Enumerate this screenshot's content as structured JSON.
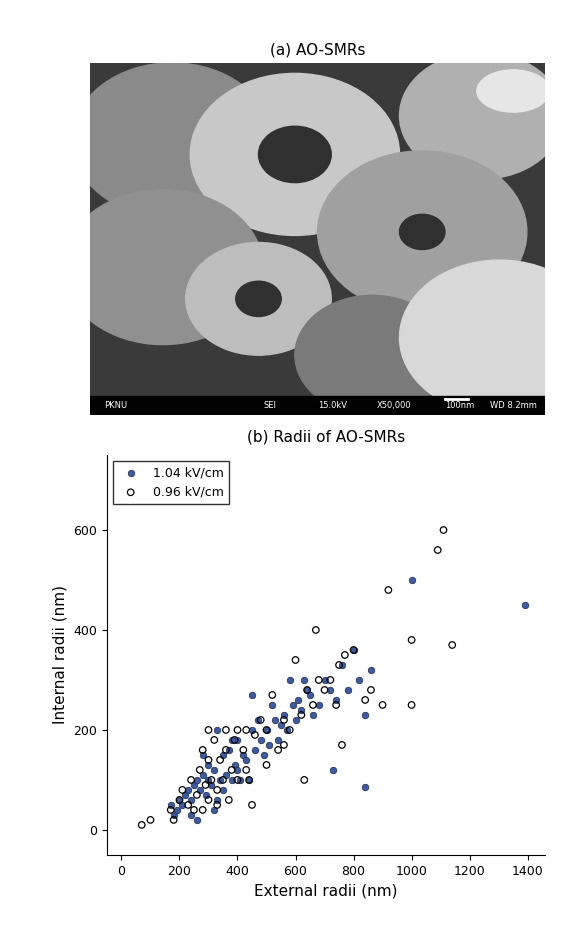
{
  "chart_data": [
    {
      "type": "image",
      "title": "(a) AO-SMRs",
      "info_bar": [
        "PKNU",
        "SEI",
        "15.0kV",
        "X50,000",
        "100nm",
        "WD 8.2mm"
      ]
    },
    {
      "type": "scatter",
      "title": "(b) Radii of AO-SMRs",
      "x_label": "External radii (nm)",
      "y_label": "Internal radii (nm)",
      "xlim": [
        -50,
        1460
      ],
      "ylim": [
        -50,
        750
      ],
      "xticks": [
        0,
        200,
        400,
        600,
        800,
        1000,
        1200,
        1400
      ],
      "yticks": [
        0,
        200,
        400,
        600
      ],
      "legend": "upper left",
      "grid": false,
      "series": [
        {
          "name": "1.04 kV/cm",
          "color": "#3b5ba5",
          "marker": "filled_circle",
          "x": [
            170,
            180,
            190,
            200,
            210,
            220,
            230,
            240,
            250,
            260,
            270,
            280,
            290,
            300,
            300,
            310,
            320,
            330,
            340,
            350,
            350,
            360,
            370,
            380,
            390,
            400,
            400,
            410,
            420,
            430,
            440,
            450,
            450,
            460,
            470,
            480,
            490,
            500,
            510,
            520,
            530,
            540,
            550,
            560,
            570,
            580,
            590,
            600,
            610,
            620,
            630,
            640,
            650,
            660,
            680,
            700,
            720,
            730,
            740,
            760,
            780,
            800,
            820,
            840,
            840,
            860,
            1000,
            1390,
            240,
            260,
            320,
            330,
            380,
            280
          ],
          "values": [
            50,
            30,
            40,
            60,
            50,
            70,
            80,
            60,
            90,
            100,
            80,
            110,
            70,
            100,
            130,
            90,
            120,
            60,
            100,
            150,
            80,
            110,
            160,
            100,
            130,
            120,
            180,
            100,
            150,
            140,
            100,
            270,
            200,
            160,
            220,
            180,
            150,
            200,
            170,
            250,
            220,
            180,
            210,
            230,
            200,
            300,
            250,
            220,
            260,
            240,
            300,
            280,
            270,
            230,
            250,
            300,
            280,
            120,
            260,
            330,
            280,
            360,
            300,
            230,
            85,
            320,
            500,
            450,
            30,
            20,
            40,
            200,
            180,
            150
          ]
        },
        {
          "name": "0.96 kV/cm",
          "color": "#000000",
          "marker": "open_circle",
          "x": [
            70,
            100,
            170,
            180,
            200,
            210,
            230,
            240,
            250,
            260,
            270,
            280,
            290,
            300,
            300,
            310,
            320,
            330,
            340,
            350,
            360,
            370,
            380,
            390,
            400,
            400,
            420,
            430,
            440,
            450,
            460,
            480,
            500,
            500,
            520,
            540,
            560,
            580,
            600,
            620,
            630,
            640,
            660,
            670,
            680,
            700,
            720,
            740,
            750,
            760,
            770,
            800,
            840,
            860,
            900,
            920,
            1000,
            1000,
            1090,
            1110,
            1140,
            430,
            360,
            330,
            300,
            280,
            560
          ],
          "values": [
            10,
            20,
            40,
            20,
            60,
            80,
            50,
            100,
            40,
            70,
            120,
            160,
            90,
            140,
            200,
            100,
            180,
            80,
            140,
            100,
            200,
            60,
            120,
            180,
            100,
            200,
            160,
            120,
            100,
            50,
            190,
            220,
            200,
            130,
            270,
            160,
            220,
            200,
            340,
            230,
            100,
            280,
            250,
            400,
            300,
            280,
            300,
            250,
            330,
            170,
            350,
            360,
            260,
            280,
            250,
            480,
            380,
            250,
            560,
            600,
            370,
            200,
            160,
            50,
            60,
            40,
            170
          ]
        }
      ]
    }
  ]
}
